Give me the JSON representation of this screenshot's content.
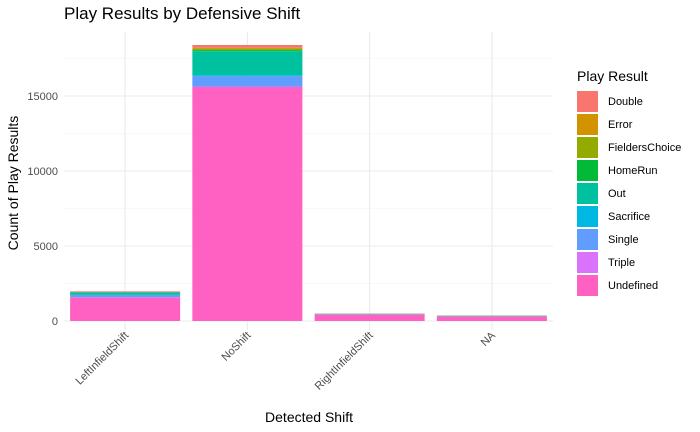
{
  "chart_data": {
    "type": "bar",
    "stacked": true,
    "title": "Play Results by Defensive Shift",
    "xlabel": "Detected Shift",
    "ylabel": "Count of Play Results",
    "categories": [
      "LeftInfieldShift",
      "NoShift",
      "RightInfieldShift",
      "NA"
    ],
    "ylim": [
      0,
      18500
    ],
    "yticks": [
      0,
      5000,
      10000,
      15000
    ],
    "grid": true,
    "legend_title": "Play Result",
    "legend_position": "right",
    "series": [
      {
        "name": "Double",
        "color": "#F8766D",
        "values": [
          40,
          180,
          10,
          8
        ]
      },
      {
        "name": "Error",
        "color": "#D39200",
        "values": [
          5,
          60,
          2,
          2
        ]
      },
      {
        "name": "FieldersChoice",
        "color": "#93AA00",
        "values": [
          20,
          100,
          3,
          3
        ]
      },
      {
        "name": "HomeRun",
        "color": "#00BA38",
        "values": [
          10,
          70,
          3,
          3
        ]
      },
      {
        "name": "Out",
        "color": "#00C19F",
        "values": [
          150,
          1600,
          30,
          30
        ]
      },
      {
        "name": "Sacrifice",
        "color": "#00B9E3",
        "values": [
          20,
          60,
          3,
          3
        ]
      },
      {
        "name": "Single",
        "color": "#619CFF",
        "values": [
          150,
          700,
          20,
          20
        ]
      },
      {
        "name": "Triple",
        "color": "#DB72FB",
        "values": [
          5,
          30,
          1,
          1
        ]
      },
      {
        "name": "Undefined",
        "color": "#FF61C3",
        "values": [
          1580,
          15600,
          430,
          300
        ]
      }
    ]
  }
}
